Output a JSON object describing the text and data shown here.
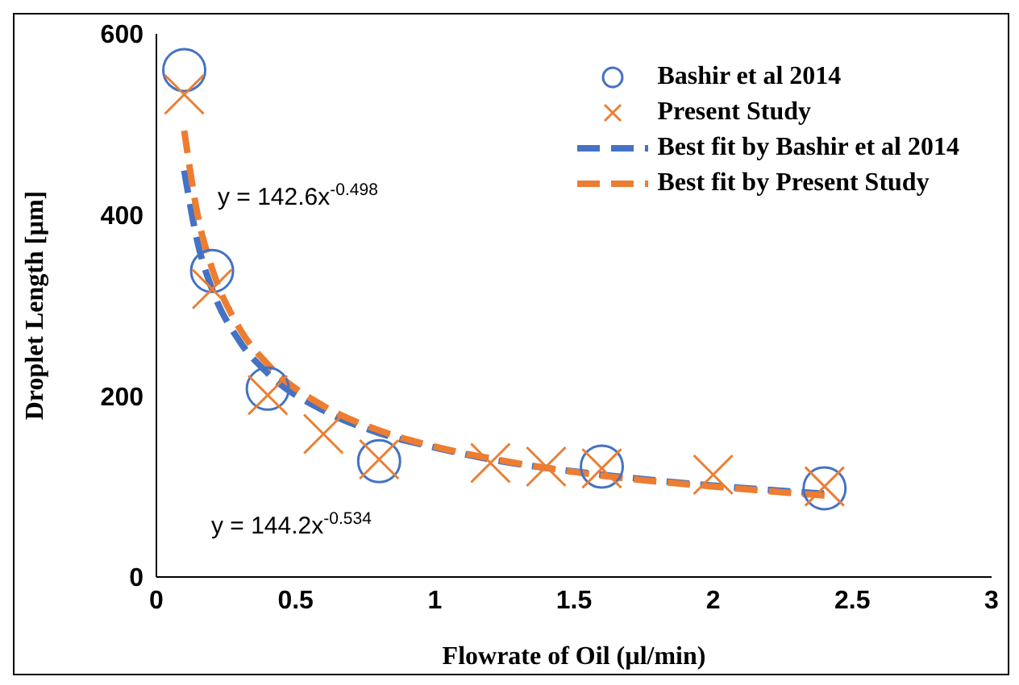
{
  "chart_data": {
    "type": "scatter",
    "xlabel": "Flowrate of Oil (µl/min)",
    "ylabel": "Droplet Length [µm]",
    "xlim": [
      0,
      3
    ],
    "xticks": [
      0,
      0.5,
      1,
      1.5,
      2,
      2.5,
      3
    ],
    "ylim": [
      0,
      600
    ],
    "yticks": [
      0,
      200,
      400,
      600
    ],
    "grid": false,
    "legend": "top right",
    "series": [
      {
        "name": "Bashir et al 2014",
        "marker": "circle",
        "color": "#4472c4",
        "x": [
          0.1,
          0.2,
          0.4,
          0.8,
          1.6,
          2.4
        ],
        "values": [
          560,
          338,
          208,
          128,
          122,
          98
        ]
      },
      {
        "name": "Present Study",
        "marker": "cross",
        "color": "#ed7d31",
        "x": [
          0.1,
          0.2,
          0.4,
          0.6,
          0.8,
          1.2,
          1.4,
          1.6,
          2.0,
          2.4
        ],
        "values": [
          533,
          318,
          201,
          158,
          130,
          126,
          122,
          120,
          113,
          100
        ]
      },
      {
        "name": "Best fit by Bashir et al 2014",
        "type": "line",
        "line_style": "dashed",
        "color": "#4472c4",
        "x": [
          0.1,
          0.15,
          0.2,
          0.3,
          0.4,
          0.6,
          0.8,
          1.0,
          1.2,
          1.6,
          2.0,
          2.4
        ],
        "values": [
          449,
          367,
          318,
          260,
          225,
          184,
          159,
          143,
          130,
          113,
          101,
          92
        ]
      },
      {
        "name": "Best fit by Present Study",
        "type": "line",
        "line_style": "dashed",
        "color": "#ed7d31",
        "x": [
          0.1,
          0.15,
          0.2,
          0.3,
          0.4,
          0.6,
          0.8,
          1.0,
          1.2,
          1.6,
          2.0,
          2.4
        ],
        "values": [
          493,
          397,
          341,
          274,
          235,
          189,
          162,
          144,
          131,
          112,
          100,
          90
        ]
      }
    ],
    "annotations": [
      "y = 142.6x$^{-0.498}$",
      "y = 144.2x$^{-0.534}$"
    ]
  }
}
